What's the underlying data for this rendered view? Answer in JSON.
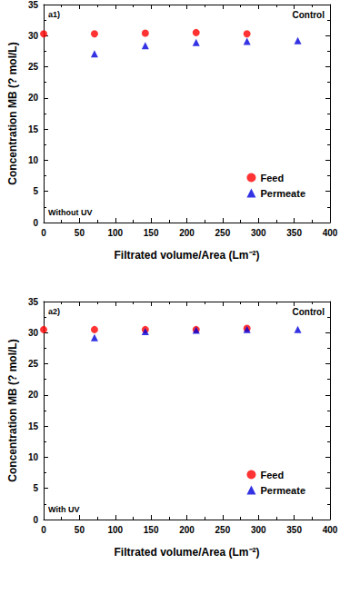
{
  "chart_data": [
    {
      "type": "scatter",
      "annotations": [
        "a1)",
        "Control",
        "Without UV"
      ],
      "x_label": "Filtrated volume/Area (Lm⁻²)",
      "y_label": "Concentration MB (? mol/L)",
      "xlim": [
        0,
        400
      ],
      "xticks": [
        0,
        50,
        100,
        150,
        200,
        250,
        300,
        350,
        400
      ],
      "ylim": [
        0,
        35
      ],
      "yticks": [
        0,
        5,
        10,
        15,
        20,
        25,
        30,
        35
      ],
      "grid": false,
      "legend": "lower right",
      "series": [
        {
          "name": "Feed",
          "color": "#ff0000",
          "marker": "circle",
          "x": [
            0,
            71,
            142,
            213,
            284
          ],
          "values": [
            30.3,
            30.3,
            30.4,
            30.5,
            30.3
          ]
        },
        {
          "name": "Permeate",
          "color": "#0000dd",
          "marker": "triangle",
          "x": [
            71,
            142,
            213,
            284,
            355
          ],
          "values": [
            27.1,
            28.4,
            28.9,
            29.1,
            29.2
          ]
        }
      ]
    },
    {
      "type": "scatter",
      "annotations": [
        "a2)",
        "Control",
        "With UV"
      ],
      "x_label": "Filtrated volume/Area (Lm⁻²)",
      "y_label": "Concentration MB (? mol/L)",
      "xlim": [
        0,
        400
      ],
      "xticks": [
        0,
        50,
        100,
        150,
        200,
        250,
        300,
        350,
        400
      ],
      "ylim": [
        0,
        35
      ],
      "yticks": [
        0,
        5,
        10,
        15,
        20,
        25,
        30,
        35
      ],
      "grid": false,
      "legend": "lower right",
      "series": [
        {
          "name": "Feed",
          "color": "#ff0000",
          "marker": "circle",
          "x": [
            0,
            71,
            142,
            213,
            284
          ],
          "values": [
            30.5,
            30.5,
            30.5,
            30.5,
            30.7
          ]
        },
        {
          "name": "Permeate",
          "color": "#0000dd",
          "marker": "triangle",
          "x": [
            71,
            142,
            213,
            284,
            355
          ],
          "values": [
            29.2,
            30.2,
            30.4,
            30.5,
            30.5
          ]
        }
      ]
    }
  ]
}
